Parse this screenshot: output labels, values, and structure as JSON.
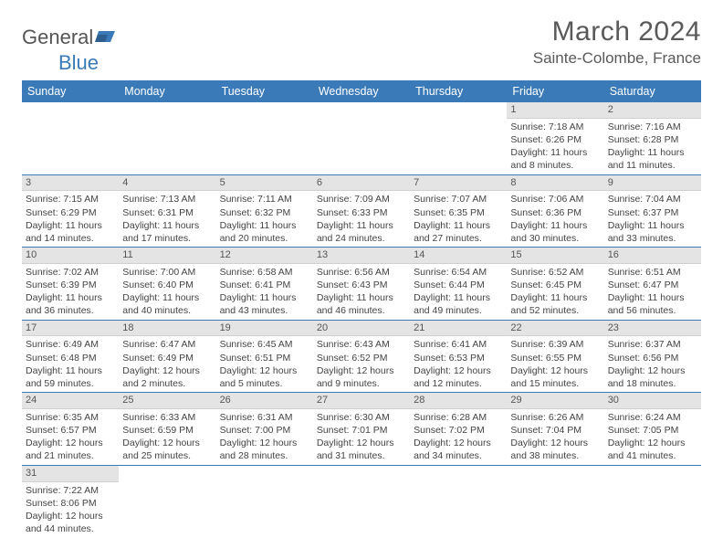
{
  "logo": {
    "general": "General",
    "blue": "Blue"
  },
  "title": "March 2024",
  "location": "Sainte-Colombe, France",
  "colors": {
    "header_bg": "#3a7ab8",
    "header_text": "#ffffff",
    "daynum_bg": "#e4e4e4",
    "row_border": "#3a7ab8",
    "text": "#444444",
    "title_text": "#5a5a5a"
  },
  "typography": {
    "title_fontsize": 30,
    "location_fontsize": 17,
    "header_fontsize": 12.5,
    "cell_fontsize": 10.5
  },
  "weekdays": [
    "Sunday",
    "Monday",
    "Tuesday",
    "Wednesday",
    "Thursday",
    "Friday",
    "Saturday"
  ],
  "weeks": [
    [
      null,
      null,
      null,
      null,
      null,
      {
        "n": "1",
        "sr": "Sunrise: 7:18 AM",
        "ss": "Sunset: 6:26 PM",
        "dl": "Daylight: 11 hours and 8 minutes."
      },
      {
        "n": "2",
        "sr": "Sunrise: 7:16 AM",
        "ss": "Sunset: 6:28 PM",
        "dl": "Daylight: 11 hours and 11 minutes."
      }
    ],
    [
      {
        "n": "3",
        "sr": "Sunrise: 7:15 AM",
        "ss": "Sunset: 6:29 PM",
        "dl": "Daylight: 11 hours and 14 minutes."
      },
      {
        "n": "4",
        "sr": "Sunrise: 7:13 AM",
        "ss": "Sunset: 6:31 PM",
        "dl": "Daylight: 11 hours and 17 minutes."
      },
      {
        "n": "5",
        "sr": "Sunrise: 7:11 AM",
        "ss": "Sunset: 6:32 PM",
        "dl": "Daylight: 11 hours and 20 minutes."
      },
      {
        "n": "6",
        "sr": "Sunrise: 7:09 AM",
        "ss": "Sunset: 6:33 PM",
        "dl": "Daylight: 11 hours and 24 minutes."
      },
      {
        "n": "7",
        "sr": "Sunrise: 7:07 AM",
        "ss": "Sunset: 6:35 PM",
        "dl": "Daylight: 11 hours and 27 minutes."
      },
      {
        "n": "8",
        "sr": "Sunrise: 7:06 AM",
        "ss": "Sunset: 6:36 PM",
        "dl": "Daylight: 11 hours and 30 minutes."
      },
      {
        "n": "9",
        "sr": "Sunrise: 7:04 AM",
        "ss": "Sunset: 6:37 PM",
        "dl": "Daylight: 11 hours and 33 minutes."
      }
    ],
    [
      {
        "n": "10",
        "sr": "Sunrise: 7:02 AM",
        "ss": "Sunset: 6:39 PM",
        "dl": "Daylight: 11 hours and 36 minutes."
      },
      {
        "n": "11",
        "sr": "Sunrise: 7:00 AM",
        "ss": "Sunset: 6:40 PM",
        "dl": "Daylight: 11 hours and 40 minutes."
      },
      {
        "n": "12",
        "sr": "Sunrise: 6:58 AM",
        "ss": "Sunset: 6:41 PM",
        "dl": "Daylight: 11 hours and 43 minutes."
      },
      {
        "n": "13",
        "sr": "Sunrise: 6:56 AM",
        "ss": "Sunset: 6:43 PM",
        "dl": "Daylight: 11 hours and 46 minutes."
      },
      {
        "n": "14",
        "sr": "Sunrise: 6:54 AM",
        "ss": "Sunset: 6:44 PM",
        "dl": "Daylight: 11 hours and 49 minutes."
      },
      {
        "n": "15",
        "sr": "Sunrise: 6:52 AM",
        "ss": "Sunset: 6:45 PM",
        "dl": "Daylight: 11 hours and 52 minutes."
      },
      {
        "n": "16",
        "sr": "Sunrise: 6:51 AM",
        "ss": "Sunset: 6:47 PM",
        "dl": "Daylight: 11 hours and 56 minutes."
      }
    ],
    [
      {
        "n": "17",
        "sr": "Sunrise: 6:49 AM",
        "ss": "Sunset: 6:48 PM",
        "dl": "Daylight: 11 hours and 59 minutes."
      },
      {
        "n": "18",
        "sr": "Sunrise: 6:47 AM",
        "ss": "Sunset: 6:49 PM",
        "dl": "Daylight: 12 hours and 2 minutes."
      },
      {
        "n": "19",
        "sr": "Sunrise: 6:45 AM",
        "ss": "Sunset: 6:51 PM",
        "dl": "Daylight: 12 hours and 5 minutes."
      },
      {
        "n": "20",
        "sr": "Sunrise: 6:43 AM",
        "ss": "Sunset: 6:52 PM",
        "dl": "Daylight: 12 hours and 9 minutes."
      },
      {
        "n": "21",
        "sr": "Sunrise: 6:41 AM",
        "ss": "Sunset: 6:53 PM",
        "dl": "Daylight: 12 hours and 12 minutes."
      },
      {
        "n": "22",
        "sr": "Sunrise: 6:39 AM",
        "ss": "Sunset: 6:55 PM",
        "dl": "Daylight: 12 hours and 15 minutes."
      },
      {
        "n": "23",
        "sr": "Sunrise: 6:37 AM",
        "ss": "Sunset: 6:56 PM",
        "dl": "Daylight: 12 hours and 18 minutes."
      }
    ],
    [
      {
        "n": "24",
        "sr": "Sunrise: 6:35 AM",
        "ss": "Sunset: 6:57 PM",
        "dl": "Daylight: 12 hours and 21 minutes."
      },
      {
        "n": "25",
        "sr": "Sunrise: 6:33 AM",
        "ss": "Sunset: 6:59 PM",
        "dl": "Daylight: 12 hours and 25 minutes."
      },
      {
        "n": "26",
        "sr": "Sunrise: 6:31 AM",
        "ss": "Sunset: 7:00 PM",
        "dl": "Daylight: 12 hours and 28 minutes."
      },
      {
        "n": "27",
        "sr": "Sunrise: 6:30 AM",
        "ss": "Sunset: 7:01 PM",
        "dl": "Daylight: 12 hours and 31 minutes."
      },
      {
        "n": "28",
        "sr": "Sunrise: 6:28 AM",
        "ss": "Sunset: 7:02 PM",
        "dl": "Daylight: 12 hours and 34 minutes."
      },
      {
        "n": "29",
        "sr": "Sunrise: 6:26 AM",
        "ss": "Sunset: 7:04 PM",
        "dl": "Daylight: 12 hours and 38 minutes."
      },
      {
        "n": "30",
        "sr": "Sunrise: 6:24 AM",
        "ss": "Sunset: 7:05 PM",
        "dl": "Daylight: 12 hours and 41 minutes."
      }
    ],
    [
      {
        "n": "31",
        "sr": "Sunrise: 7:22 AM",
        "ss": "Sunset: 8:06 PM",
        "dl": "Daylight: 12 hours and 44 minutes."
      },
      null,
      null,
      null,
      null,
      null,
      null
    ]
  ]
}
